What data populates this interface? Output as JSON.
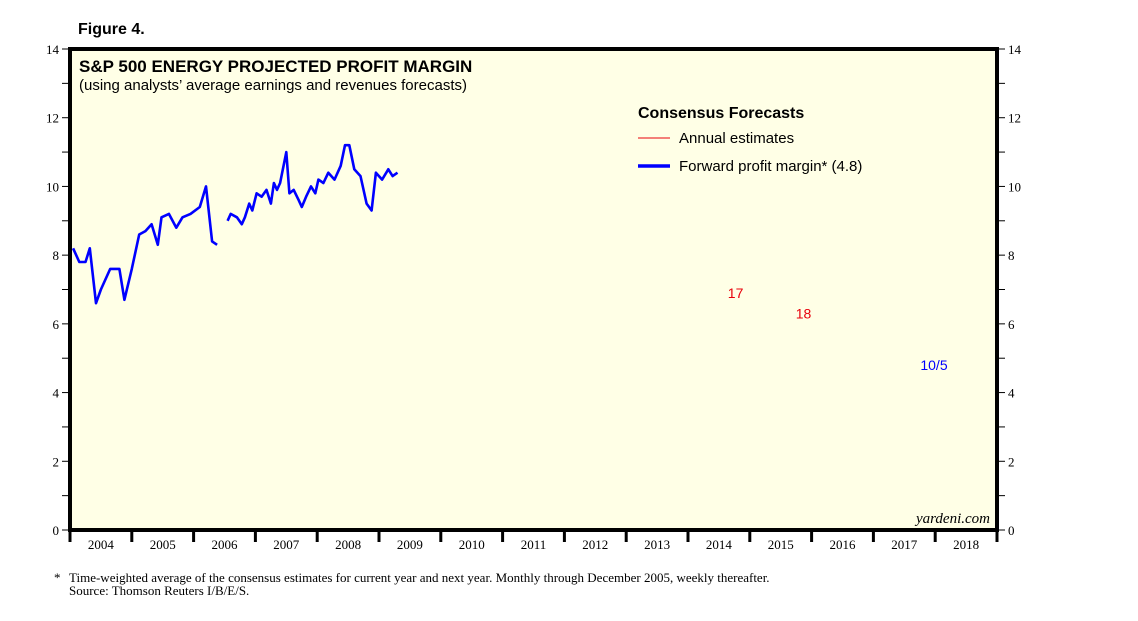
{
  "figure_label": "Figure 4.",
  "watermark": "yardeni.com",
  "footnote": {
    "asterisk": "*",
    "line1": "Time-weighted average of the consensus estimates for current year and next year. Monthly through December 2005, weekly thereafter.",
    "line2": "Source: Thomson Reuters I/B/E/S."
  },
  "colors": {
    "plot_background": "#ffffe6",
    "forward_line": "#0000ff",
    "annual_line": "#e8000b",
    "frame": "#000000"
  },
  "chart_data": {
    "type": "line",
    "title": "S&P 500 ENERGY PROJECTED PROFIT MARGIN",
    "subtitle": "(using analysts’ average earnings and revenues forecasts)",
    "xlabel": "",
    "ylabel": "",
    "ylim": [
      0,
      14
    ],
    "xlim": [
      2004.0,
      2019.0
    ],
    "y_ticks": [
      0,
      2,
      4,
      6,
      8,
      10,
      12,
      14
    ],
    "y_ticks_both_sides": true,
    "x_tick_labels": [
      "2004",
      "2005",
      "2006",
      "2007",
      "2008",
      "2009",
      "2010",
      "2011",
      "2012",
      "2013",
      "2014",
      "2015",
      "2016",
      "2017",
      "2018"
    ],
    "grid": false,
    "legend": {
      "title": "Consensus Forecasts",
      "placement": "top-right",
      "entries": [
        {
          "label": "Annual estimates",
          "series": "annual"
        },
        {
          "label": "Forward profit margin* (4.8)",
          "series": "forward"
        }
      ]
    },
    "annotations": [
      {
        "text": "17",
        "series": "annual_2017",
        "x": 2015.0,
        "y": 6.9
      },
      {
        "text": "18",
        "series": "annual_2018",
        "x": 2016.1,
        "y": 6.3
      },
      {
        "text": "10/5",
        "series": "forward",
        "x": 2017.76,
        "y": 4.8
      }
    ],
    "series": [
      {
        "name": "Forward profit margin* (4.8)",
        "key": "forward",
        "segments": [
          {
            "x": [
              2004.05,
              2004.15,
              2004.25,
              2004.32,
              2004.42,
              2004.5,
              2004.65,
              2004.8,
              2004.88,
              2005.0,
              2005.12,
              2005.22,
              2005.32,
              2005.42,
              2005.48,
              2005.6,
              2005.72,
              2005.82,
              2005.95,
              2006.1,
              2006.2,
              2006.3,
              2006.38
            ],
            "y": [
              8.2,
              7.8,
              7.8,
              8.2,
              6.6,
              7.0,
              7.6,
              7.6,
              6.7,
              7.6,
              8.6,
              8.7,
              8.9,
              8.3,
              9.1,
              9.2,
              8.8,
              9.1,
              9.2,
              9.4,
              10.0,
              8.4,
              8.3
            ]
          },
          {
            "x": [
              2006.55,
              2006.6,
              2006.7,
              2006.78,
              2006.83,
              2006.9,
              2006.95,
              2007.02,
              2007.1,
              2007.18,
              2007.25,
              2007.3,
              2007.35,
              2007.4,
              2007.5,
              2007.55,
              2007.62,
              2007.7,
              2007.75,
              2007.82,
              2007.9,
              2007.97,
              2008.02,
              2008.1,
              2008.18,
              2008.28,
              2008.38,
              2008.45,
              2008.52,
              2008.6,
              2008.7,
              2008.8,
              2008.88,
              2008.95,
              2009.05,
              2009.15,
              2009.22,
              2009.3
            ],
            "y": [
              9.0,
              9.2,
              9.1,
              8.9,
              9.1,
              9.5,
              9.3,
              9.8,
              9.7,
              9.9,
              9.5,
              10.1,
              9.9,
              10.1,
              11.0,
              9.8,
              9.9,
              9.6,
              9.4,
              9.7,
              10.0,
              9.8,
              10.2,
              10.1,
              10.4,
              10.2,
              10.6,
              11.2,
              11.2,
              10.5,
              10.3,
              9.5,
              9.3,
              10.4,
              10.2,
              10.5,
              10.3,
              10.4
            ]
          }
        ]
      }
    ]
  }
}
